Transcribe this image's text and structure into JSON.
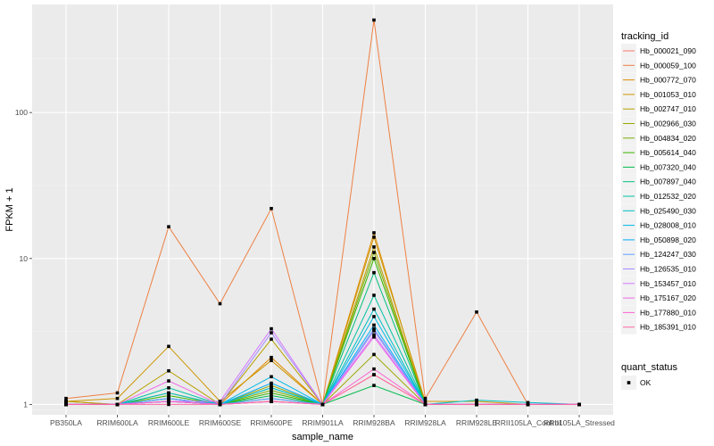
{
  "chart_data": {
    "type": "line",
    "xlabel": "sample_name",
    "ylabel": "FPKM + 1",
    "y_scale": "log10",
    "ylim": [
      0.85,
      550
    ],
    "y_ticks": [
      {
        "value": 1,
        "label": "1"
      },
      {
        "value": 10,
        "label": "10"
      },
      {
        "value": 100,
        "label": "100"
      }
    ],
    "grid": true,
    "legend_position": "right",
    "categories": [
      "PB350LA",
      "RRIM600LA",
      "RRIM600LE",
      "RRIM600SE",
      "RRIM600PE",
      "RRIM901LA",
      "RRIM928BA",
      "RRIM928LA",
      "RRIM928LE",
      "RRII105LA_Control",
      "RRII105LA_Stressed"
    ],
    "legend_title": "tracking_id",
    "series": [
      {
        "name": "Hb_000021_090",
        "color": "#F8766D",
        "values": [
          1.0,
          1.0,
          1.05,
          1.0,
          1.05,
          1.0,
          1.6,
          1.0,
          1.0,
          1.0,
          1.0
        ]
      },
      {
        "name": "Hb_000059_100",
        "color": "#EE8043",
        "values": [
          1.1,
          1.2,
          16.5,
          4.9,
          22.0,
          1.0,
          430.0,
          1.1,
          4.3,
          1.0,
          1.0
        ]
      },
      {
        "name": "Hb_000772_070",
        "color": "#E08B00",
        "values": [
          1.05,
          1.0,
          1.05,
          1.0,
          2.1,
          1.0,
          15.0,
          1.0,
          1.0,
          1.0,
          1.0
        ]
      },
      {
        "name": "Hb_001053_010",
        "color": "#CD9600",
        "values": [
          1.05,
          1.1,
          2.5,
          1.05,
          2.0,
          1.0,
          14.0,
          1.05,
          1.05,
          1.0,
          1.0
        ]
      },
      {
        "name": "Hb_002747_010",
        "color": "#B79F00",
        "values": [
          1.05,
          1.0,
          1.7,
          1.0,
          2.8,
          1.0,
          12.0,
          1.0,
          1.0,
          1.0,
          1.0
        ]
      },
      {
        "name": "Hb_002966_030",
        "color": "#9CA700",
        "values": [
          1.0,
          1.0,
          1.2,
          1.0,
          1.35,
          1.0,
          2.2,
          1.0,
          1.0,
          1.0,
          1.0
        ]
      },
      {
        "name": "Hb_004834_020",
        "color": "#7CAE00",
        "values": [
          1.0,
          1.0,
          1.1,
          1.0,
          1.25,
          1.0,
          11.0,
          1.0,
          1.0,
          1.0,
          1.0
        ]
      },
      {
        "name": "Hb_005614_040",
        "color": "#39B600",
        "values": [
          1.0,
          1.0,
          1.15,
          1.0,
          1.2,
          1.0,
          10.0,
          1.0,
          1.0,
          1.0,
          1.0
        ]
      },
      {
        "name": "Hb_007320_040",
        "color": "#00BB4E",
        "values": [
          1.0,
          1.0,
          1.05,
          1.0,
          1.15,
          1.0,
          1.35,
          1.0,
          1.0,
          1.0,
          1.0
        ]
      },
      {
        "name": "Hb_007897_040",
        "color": "#00BF7D",
        "values": [
          1.0,
          1.0,
          1.1,
          1.0,
          1.1,
          1.0,
          8.0,
          1.0,
          1.0,
          1.0,
          1.0
        ]
      },
      {
        "name": "Hb_012532_020",
        "color": "#00C1A3",
        "values": [
          1.0,
          1.0,
          1.3,
          1.0,
          1.3,
          1.0,
          5.6,
          1.0,
          1.0,
          1.0,
          1.0
        ]
      },
      {
        "name": "Hb_025490_030",
        "color": "#00BFC4",
        "values": [
          1.0,
          1.0,
          1.2,
          1.0,
          1.3,
          1.0,
          4.5,
          1.0,
          1.07,
          1.03,
          1.0
        ]
      },
      {
        "name": "Hb_028008_010",
        "color": "#00B8E5",
        "values": [
          1.0,
          1.0,
          1.1,
          1.0,
          1.55,
          1.0,
          4.0,
          1.0,
          1.0,
          1.0,
          1.0
        ]
      },
      {
        "name": "Hb_050898_020",
        "color": "#00ADFA",
        "values": [
          1.0,
          1.0,
          1.05,
          1.0,
          1.4,
          1.0,
          3.5,
          1.0,
          1.0,
          1.0,
          1.0
        ]
      },
      {
        "name": "Hb_124247_030",
        "color": "#619CFF",
        "values": [
          1.0,
          1.0,
          1.1,
          1.0,
          1.1,
          1.0,
          3.3,
          1.0,
          1.0,
          1.0,
          1.0
        ]
      },
      {
        "name": "Hb_126535_010",
        "color": "#A58AFF",
        "values": [
          1.0,
          1.0,
          1.05,
          1.0,
          3.1,
          1.0,
          3.2,
          1.0,
          1.0,
          1.0,
          1.0
        ]
      },
      {
        "name": "Hb_153457_010",
        "color": "#D277FF",
        "values": [
          1.0,
          1.0,
          1.05,
          1.05,
          3.3,
          1.0,
          3.0,
          1.0,
          1.0,
          1.0,
          1.0
        ]
      },
      {
        "name": "Hb_175167_020",
        "color": "#F066EA",
        "values": [
          1.0,
          1.0,
          1.45,
          1.0,
          1.05,
          1.0,
          2.9,
          1.0,
          1.0,
          1.0,
          1.0
        ]
      },
      {
        "name": "Hb_177880_010",
        "color": "#FD61D1",
        "values": [
          1.0,
          1.0,
          1.05,
          1.0,
          1.05,
          1.0,
          1.75,
          1.0,
          1.0,
          1.0,
          1.0
        ]
      },
      {
        "name": "Hb_185391_010",
        "color": "#FF67A4",
        "values": [
          1.0,
          1.0,
          1.0,
          1.0,
          1.05,
          1.0,
          1.6,
          1.0,
          1.0,
          1.0,
          1.0
        ]
      }
    ],
    "shape_legend": {
      "title": "quant_status",
      "items": [
        {
          "label": "OK"
        }
      ]
    }
  }
}
